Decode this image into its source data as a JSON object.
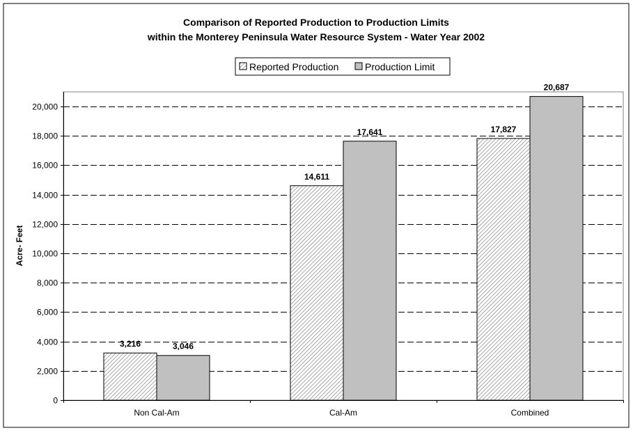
{
  "chart_data": {
    "type": "bar",
    "title_line1": "Comparison of Reported Production to Production Limits",
    "title_line2": "within the Monterey Peninsula Water Resource System - Water Year 2002",
    "ylabel": "Acre- Feet",
    "xlabel": "",
    "categories": [
      "Non Cal-Am",
      "Cal-Am",
      "Combined"
    ],
    "series": [
      {
        "name": "Reported Production",
        "values": [
          3216,
          14611,
          17827
        ],
        "labels": [
          "3,216",
          "14,611",
          "17,827"
        ],
        "pattern": "diagonal-hatch",
        "color": "#ffffff"
      },
      {
        "name": "Production Limit",
        "values": [
          3046,
          17641,
          20687
        ],
        "labels": [
          "3,046",
          "17,641",
          "20,687"
        ],
        "pattern": "solid",
        "color": "#c0c0c0"
      }
    ],
    "ylim": [
      0,
      21000
    ],
    "yticks": [
      0,
      2000,
      4000,
      6000,
      8000,
      10000,
      12000,
      14000,
      16000,
      18000,
      20000
    ],
    "ytick_labels": [
      "0",
      "2,000",
      "4,000",
      "6,000",
      "8,000",
      "10,000",
      "12,000",
      "14,000",
      "16,000",
      "18,000",
      "20,000"
    ],
    "grid": "horizontal-dashed",
    "legend_position": "top-center"
  }
}
